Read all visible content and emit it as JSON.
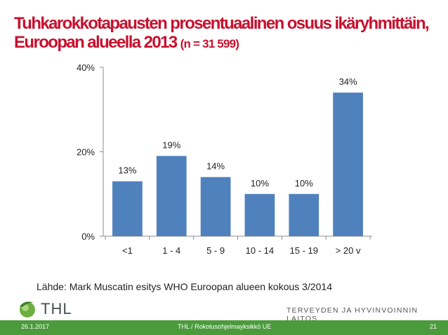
{
  "title_line1": "Tuhkarokkotapausten prosentuaalinen osuus ikäryhmittäin,",
  "title_line2": "Euroopan alueella 2013",
  "title_n": "(n = 31 599)",
  "source": "Lähde: Mark Muscatin esitys WHO Euroopan alueen kokous 3/2014",
  "logo_text": "THL",
  "institute": "TERVEYDEN JA HYVINVOINNIN LAITOS",
  "footer": {
    "date": "26.1.2017",
    "center": "THL / Rokotusohjelmayksikkö UE",
    "page": "21"
  },
  "colors": {
    "title": "#c8102e",
    "bar": "#4f81bd",
    "footer": "#4b9b3c"
  },
  "chart_data": {
    "type": "bar",
    "categories": [
      "<1",
      "1 - 4",
      "5 - 9",
      "10 - 14",
      "15 - 19",
      "> 20 v"
    ],
    "values": [
      13,
      19,
      14,
      10,
      10,
      34
    ],
    "data_labels": [
      "13%",
      "19%",
      "14%",
      "10%",
      "10%",
      "34%"
    ],
    "yticks": [
      "0%",
      "20%",
      "40%"
    ],
    "ylim": [
      0,
      40
    ],
    "grid": false,
    "legend": "none"
  }
}
